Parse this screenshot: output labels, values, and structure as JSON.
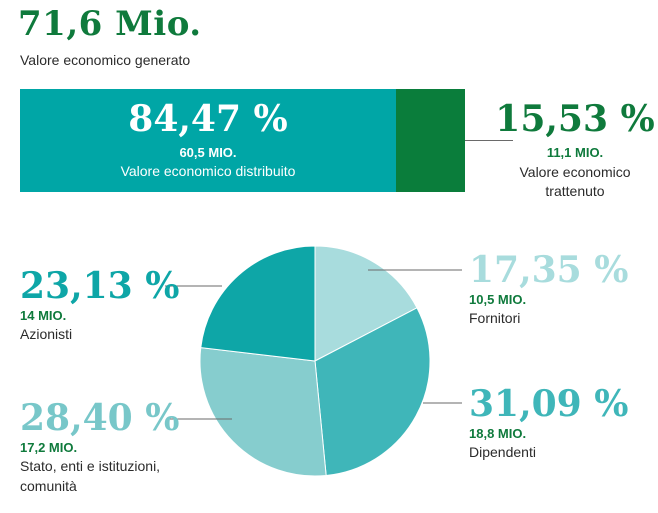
{
  "header": {
    "total_value": "71,6 Mio.",
    "total_label": "Valore economico generato"
  },
  "bar": {
    "distributed": {
      "percent": "84,47 %",
      "amount": "60,5 MIO.",
      "label": "Valore economico distribuito",
      "share": 84.47
    },
    "retained": {
      "percent": "15,53 %",
      "amount": "11,1 MIO.",
      "label": "Valore economico trattenuto",
      "share": 15.53
    }
  },
  "colors": {
    "dark_green": "#0f7a3c",
    "teal_bar": "#00a6a6",
    "retained_bar": "#0a7d3b"
  },
  "chart_data": {
    "type": "pie",
    "start_angle_deg": 0,
    "direction": "clockwise",
    "slices": [
      {
        "name": "Fornitori",
        "value": 17.35,
        "percent_text": "17,35 %",
        "amount": "10,5 MIO.",
        "color": "#a8dcdd",
        "pct_color": "#a8dcdd"
      },
      {
        "name": "Dipendenti",
        "value": 31.09,
        "percent_text": "31,09 %",
        "amount": "18,8 MIO.",
        "color": "#3fb6b9",
        "pct_color": "#3fb6b9"
      },
      {
        "name": "Stato, enti e istituzioni, comunità",
        "value": 28.4,
        "percent_text": "28,40 %",
        "amount": "17,2 MIO.",
        "color": "#86cdce",
        "pct_color": "#78c7c9"
      },
      {
        "name": "Azionisti",
        "value": 23.13,
        "percent_text": "23,13 %",
        "amount": "14 MIO.",
        "color": "#0ea6a7",
        "pct_color": "#0ea6a7"
      }
    ]
  }
}
